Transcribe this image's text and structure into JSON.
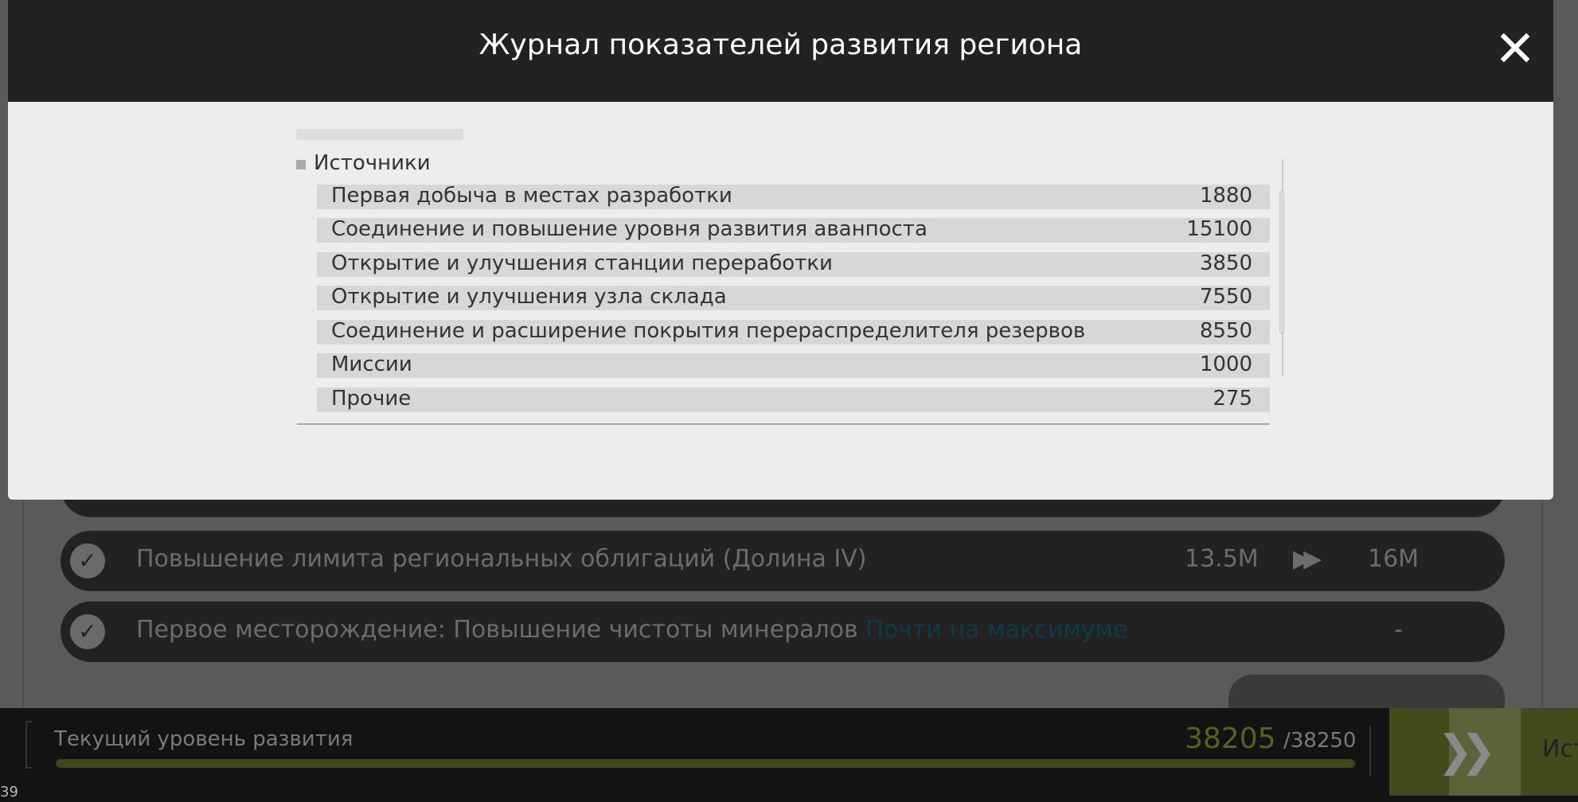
{
  "modal": {
    "title": "Журнал показателей развития региона",
    "section_title": "Источники",
    "rows": [
      {
        "label": "Первая добыча в местах разработки",
        "value": "1880"
      },
      {
        "label": "Соединение и повышение уровня развития аванпоста",
        "value": "15100"
      },
      {
        "label": "Открытие и улучшения станции переработки",
        "value": "3850"
      },
      {
        "label": "Открытие и улучшения узла склада",
        "value": "7550"
      },
      {
        "label": "Соединение и расширение покрытия перераспределителя резервов",
        "value": "8550"
      },
      {
        "label": "Миссии",
        "value": "1000"
      },
      {
        "label": "Прочие",
        "value": "275"
      }
    ]
  },
  "background_list": [
    {
      "label": "Повышение лимита региональных облигаций (Долина IV)",
      "from": "13.5M",
      "arrow": "▶▶",
      "to": "16M"
    },
    {
      "label": "Первое месторождение: Повышение чистоты минералов",
      "highlight": "Почти на максимуме",
      "value": "-"
    }
  ],
  "progress": {
    "label": "Текущий уровень развития",
    "current": "38205",
    "max": "/38250",
    "fraction": 0.9988,
    "color": "#414719"
  },
  "side_button": {
    "label": "Ист",
    "icon": "fast-forward-icon"
  },
  "corner_text": "39"
}
